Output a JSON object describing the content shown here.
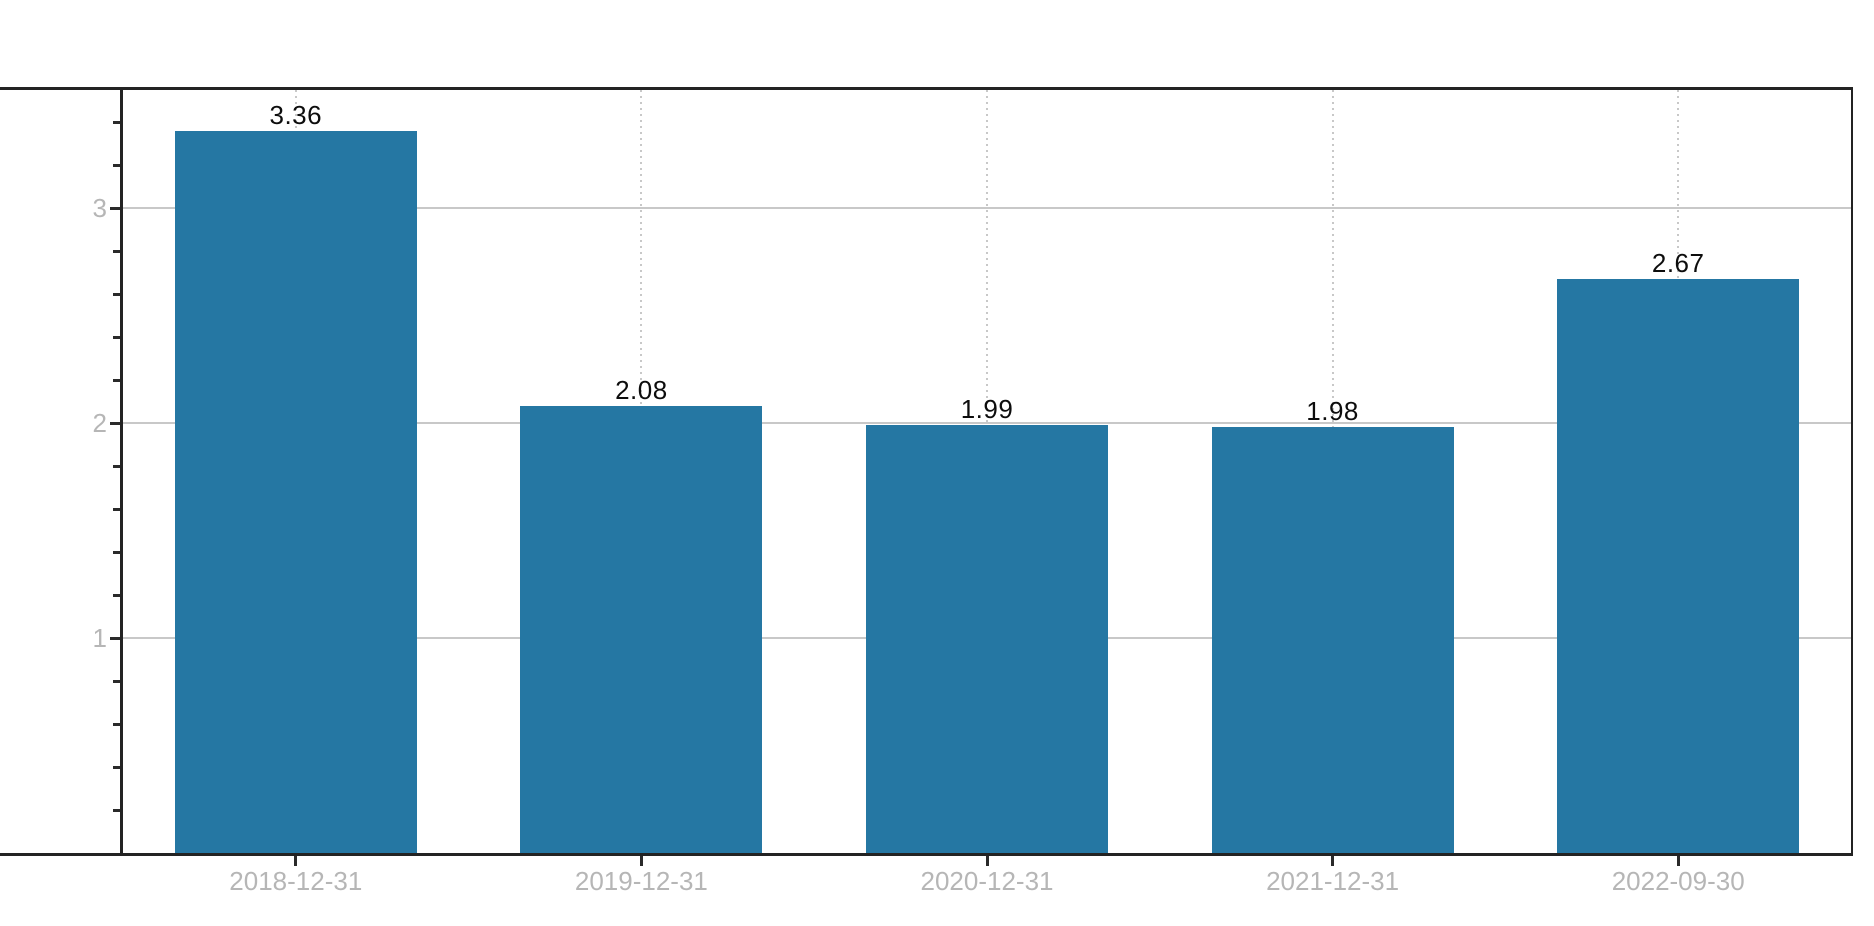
{
  "chart_data": {
    "type": "bar",
    "title": "",
    "xlabel": "",
    "ylabel": "",
    "categories": [
      "2018-12-31",
      "2019-12-31",
      "2020-12-31",
      "2021-12-31",
      "2022-09-30"
    ],
    "values": [
      3.36,
      2.08,
      1.99,
      1.98,
      2.67
    ],
    "value_labels": [
      "3.36",
      "2.08",
      "1.99",
      "1.98",
      "2.67"
    ],
    "ylim": [
      0,
      3.55
    ],
    "y_major_ticks": [
      1,
      2,
      3
    ],
    "y_major_tick_labels": [
      "1",
      "2",
      "3"
    ],
    "y_minor_tick_step": 0.2,
    "grid": {
      "horizontal": "solid lines at major y ticks",
      "vertical": "dotted lines at each bar center"
    },
    "legend": "none",
    "colors": {
      "bar": "#2577a3",
      "axis_spine": "#232323",
      "grid_solid": "#c8c8c8",
      "grid_dotted": "#c8c8c8",
      "tick_label": "#b6b6b6",
      "value_label": "#0d0d0d",
      "background": "#ffffff"
    }
  }
}
